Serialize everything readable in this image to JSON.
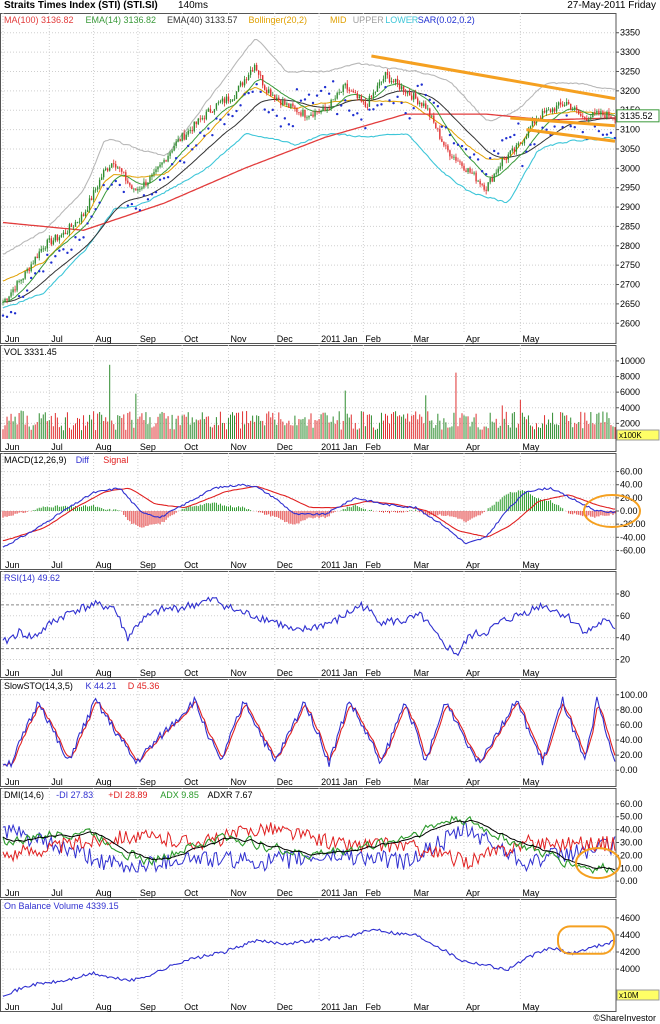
{
  "header": {
    "title": "Straits Times Index (STI) (STI.SI)",
    "timing": "140ms",
    "date": "27-May-2011 Friday"
  },
  "credit": "©ShareInvestor",
  "x_axis": {
    "months": [
      "Jun",
      "Jul",
      "Aug",
      "Sep",
      "Oct",
      "Nov",
      "Dec",
      "2011 Jan",
      "Feb",
      "Mar",
      "Apr",
      "May"
    ]
  },
  "colors": {
    "price_up": "#2e8b2e",
    "price_down": "#e03030",
    "ma100": "#e23c3c",
    "ema14": "#3a9a3a",
    "ema40": "#333333",
    "bollinger_mid": "#e0a000",
    "bollinger_upper": "#b8b8b8",
    "bollinger_lower": "#3ec6d8",
    "sar": "#1f2fd0",
    "annotation": "#f5a020",
    "blue": "#3030d0",
    "red": "#e02020",
    "green": "#2a9a2a"
  },
  "chart_data": [
    {
      "id": "price",
      "type": "candlestick",
      "legend": [
        {
          "label": "MA(100)",
          "value": "3136.82",
          "color": "#e23c3c"
        },
        {
          "label": "EMA(14)",
          "value": "3136.82",
          "color": "#3a9a3a"
        },
        {
          "label": "EMA(40)",
          "value": "3133.57",
          "color": "#333333"
        },
        {
          "label": "Bollinger(20,2)",
          "value": "",
          "color": "#e0a000"
        },
        {
          "label": "MID",
          "value": "",
          "color": "#e0a000"
        },
        {
          "label": "UPPER",
          "value": "",
          "color": "#a0a0a0"
        },
        {
          "label": "LOWER",
          "value": "",
          "color": "#3ec6d8"
        },
        {
          "label": "SAR(0.02,0.2)",
          "value": "",
          "color": "#1f2fd0"
        }
      ],
      "last_value": "3135.52",
      "y_ticks": [
        2600,
        2650,
        2700,
        2750,
        2800,
        2850,
        2900,
        2950,
        3000,
        3050,
        3100,
        3150,
        3200,
        3250,
        3300,
        3350
      ],
      "ylim": [
        2580,
        3370
      ],
      "close_anchors": [
        [
          0,
          2655
        ],
        [
          10,
          2720
        ],
        [
          20,
          2800
        ],
        [
          30,
          2830
        ],
        [
          40,
          2880
        ],
        [
          50,
          2990
        ],
        [
          55,
          3020
        ],
        [
          65,
          2940
        ],
        [
          75,
          2980
        ],
        [
          85,
          3060
        ],
        [
          95,
          3110
        ],
        [
          105,
          3160
        ],
        [
          115,
          3190
        ],
        [
          125,
          3270
        ],
        [
          130,
          3210
        ],
        [
          140,
          3165
        ],
        [
          150,
          3140
        ],
        [
          160,
          3150
        ],
        [
          170,
          3210
        ],
        [
          180,
          3160
        ],
        [
          190,
          3240
        ],
        [
          200,
          3200
        ],
        [
          210,
          3160
        ],
        [
          220,
          3050
        ],
        [
          230,
          3000
        ],
        [
          240,
          2950
        ],
        [
          248,
          3020
        ],
        [
          255,
          3050
        ],
        [
          265,
          3130
        ],
        [
          272,
          3150
        ],
        [
          280,
          3170
        ],
        [
          288,
          3130
        ],
        [
          296,
          3140
        ],
        [
          304,
          3135
        ]
      ],
      "ma100_anchors": [
        [
          0,
          2860
        ],
        [
          40,
          2840
        ],
        [
          80,
          2910
        ],
        [
          120,
          3000
        ],
        [
          160,
          3080
        ],
        [
          200,
          3140
        ],
        [
          240,
          3140
        ],
        [
          270,
          3125
        ],
        [
          304,
          3130
        ]
      ],
      "upper_anchors": [
        [
          0,
          2780
        ],
        [
          20,
          2840
        ],
        [
          40,
          2950
        ],
        [
          50,
          3080
        ],
        [
          60,
          3060
        ],
        [
          80,
          3030
        ],
        [
          100,
          3170
        ],
        [
          125,
          3340
        ],
        [
          140,
          3250
        ],
        [
          160,
          3250
        ],
        [
          175,
          3270
        ],
        [
          190,
          3260
        ],
        [
          205,
          3250
        ],
        [
          220,
          3230
        ],
        [
          240,
          3120
        ],
        [
          255,
          3150
        ],
        [
          268,
          3220
        ],
        [
          285,
          3220
        ],
        [
          304,
          3200
        ]
      ],
      "lower_anchors": [
        [
          0,
          2640
        ],
        [
          20,
          2680
        ],
        [
          40,
          2790
        ],
        [
          55,
          2900
        ],
        [
          65,
          2900
        ],
        [
          80,
          2940
        ],
        [
          100,
          3000
        ],
        [
          120,
          3090
        ],
        [
          130,
          3080
        ],
        [
          145,
          3060
        ],
        [
          160,
          3090
        ],
        [
          180,
          3080
        ],
        [
          200,
          3090
        ],
        [
          215,
          3000
        ],
        [
          230,
          2940
        ],
        [
          250,
          2910
        ],
        [
          265,
          3050
        ],
        [
          280,
          3070
        ],
        [
          304,
          3080
        ]
      ],
      "trendlines": [
        {
          "from": [
            183,
            3290
          ],
          "to": [
            304,
            3180
          ]
        },
        {
          "from": [
            252,
            3130
          ],
          "to": [
            304,
            3110
          ]
        },
        {
          "from": [
            260,
            3100
          ],
          "to": [
            304,
            3070
          ]
        }
      ]
    },
    {
      "id": "volume",
      "type": "bar",
      "legend": [
        {
          "label": "VOL",
          "value": "3331.45",
          "color": "#000"
        }
      ],
      "y_ticks": [
        2000,
        4000,
        6000,
        8000,
        10000
      ],
      "ylim": [
        0,
        10500
      ],
      "unit": "x100K",
      "base": 2800,
      "spikes": [
        [
          53,
          9500
        ],
        [
          66,
          5800
        ],
        [
          170,
          6200
        ],
        [
          210,
          5600
        ],
        [
          225,
          8500
        ],
        [
          248,
          4300
        ],
        [
          257,
          5000
        ]
      ]
    },
    {
      "id": "macd",
      "type": "line",
      "legend": [
        {
          "label": "MACD(12,26,9)",
          "value": "",
          "color": "#000"
        },
        {
          "label": "Diff",
          "value": "",
          "color": "#3030d0"
        },
        {
          "label": "Signal",
          "value": "",
          "color": "#e02020"
        }
      ],
      "y_ticks": [
        -60,
        -40,
        -20,
        0,
        20,
        40,
        60
      ],
      "tick_labels": [
        "-60.00",
        "-40.00",
        "-20.00",
        "0.00",
        "20.00",
        "40.00",
        "60.00"
      ],
      "ylim": [
        -70,
        70
      ],
      "diff_anchors": [
        [
          0,
          -55
        ],
        [
          15,
          -30
        ],
        [
          30,
          0
        ],
        [
          45,
          28
        ],
        [
          58,
          35
        ],
        [
          68,
          0
        ],
        [
          78,
          -10
        ],
        [
          90,
          10
        ],
        [
          105,
          35
        ],
        [
          118,
          40
        ],
        [
          125,
          38
        ],
        [
          135,
          20
        ],
        [
          145,
          -5
        ],
        [
          160,
          -5
        ],
        [
          175,
          20
        ],
        [
          190,
          10
        ],
        [
          205,
          5
        ],
        [
          218,
          -20
        ],
        [
          230,
          -50
        ],
        [
          240,
          -40
        ],
        [
          250,
          0
        ],
        [
          260,
          30
        ],
        [
          272,
          35
        ],
        [
          285,
          15
        ],
        [
          295,
          0
        ],
        [
          304,
          -2
        ]
      ],
      "signal_anchors": [
        [
          0,
          -45
        ],
        [
          20,
          -25
        ],
        [
          35,
          5
        ],
        [
          50,
          30
        ],
        [
          62,
          35
        ],
        [
          75,
          10
        ],
        [
          90,
          5
        ],
        [
          110,
          30
        ],
        [
          125,
          38
        ],
        [
          140,
          22
        ],
        [
          152,
          5
        ],
        [
          165,
          5
        ],
        [
          180,
          15
        ],
        [
          195,
          10
        ],
        [
          210,
          0
        ],
        [
          225,
          -30
        ],
        [
          240,
          -40
        ],
        [
          252,
          -20
        ],
        [
          265,
          15
        ],
        [
          280,
          25
        ],
        [
          295,
          8
        ],
        [
          304,
          2
        ]
      ]
    },
    {
      "id": "rsi",
      "type": "line",
      "legend": [
        {
          "label": "RSI(14)",
          "value": "49.62",
          "color": "#3030d0"
        }
      ],
      "y_ticks": [
        20,
        40,
        60,
        80
      ],
      "ylim": [
        15,
        90
      ],
      "anchors": [
        [
          0,
          35
        ],
        [
          8,
          45
        ],
        [
          15,
          40
        ],
        [
          25,
          55
        ],
        [
          35,
          65
        ],
        [
          45,
          70
        ],
        [
          55,
          68
        ],
        [
          62,
          40
        ],
        [
          68,
          55
        ],
        [
          78,
          65
        ],
        [
          90,
          68
        ],
        [
          105,
          75
        ],
        [
          115,
          65
        ],
        [
          125,
          60
        ],
        [
          135,
          55
        ],
        [
          145,
          45
        ],
        [
          155,
          50
        ],
        [
          165,
          55
        ],
        [
          178,
          70
        ],
        [
          188,
          55
        ],
        [
          198,
          55
        ],
        [
          208,
          60
        ],
        [
          218,
          35
        ],
        [
          226,
          25
        ],
        [
          232,
          42
        ],
        [
          240,
          45
        ],
        [
          248,
          55
        ],
        [
          258,
          62
        ],
        [
          268,
          70
        ],
        [
          280,
          60
        ],
        [
          290,
          45
        ],
        [
          298,
          55
        ],
        [
          304,
          50
        ]
      ]
    },
    {
      "id": "stochastic",
      "type": "line",
      "legend": [
        {
          "label": "SlowSTO(14,3,5)",
          "value": "",
          "color": "#000"
        },
        {
          "label": "K",
          "value": "44.21",
          "color": "#3030d0"
        },
        {
          "label": "D",
          "value": "45.36",
          "color": "#e02020"
        }
      ],
      "y_ticks": [
        0,
        20,
        40,
        60,
        80,
        100
      ],
      "tick_labels": [
        "0.00",
        "20.00",
        "40.00",
        "60.00",
        "80.00",
        "100.00"
      ],
      "ylim": [
        -5,
        105
      ],
      "peaks": [
        18,
        46,
        95,
        120,
        150,
        172,
        200,
        220,
        255,
        278,
        295
      ],
      "troughs": [
        4,
        32,
        66,
        108,
        135,
        162,
        188,
        210,
        236,
        268,
        289,
        304
      ]
    },
    {
      "id": "dmi",
      "type": "line",
      "legend": [
        {
          "label": "DMI(14,6)",
          "value": "",
          "color": "#000"
        },
        {
          "label": "-DI",
          "value": "27.83",
          "color": "#3030d0"
        },
        {
          "label": "+DI",
          "value": "28.89",
          "color": "#e02020"
        },
        {
          "label": "ADX",
          "value": "9.85",
          "color": "#2a9a2a"
        },
        {
          "label": "ADXR",
          "value": "7.67",
          "color": "#000"
        }
      ],
      "y_ticks": [
        0,
        10,
        20,
        30,
        40,
        50,
        60
      ],
      "tick_labels": [
        "0.00",
        "10.00",
        "20.00",
        "30.00",
        "40.00",
        "50.00",
        "60.00"
      ],
      "ylim": [
        -3,
        63
      ]
    },
    {
      "id": "obv",
      "type": "line",
      "legend": [
        {
          "label": "On Balance Volume",
          "value": "4339.15",
          "color": "#3030d0"
        }
      ],
      "y_ticks": [
        4000,
        4200,
        4400,
        4600
      ],
      "ylim": [
        3650,
        4680
      ],
      "unit": "x10M",
      "anchors": [
        [
          0,
          3700
        ],
        [
          15,
          3820
        ],
        [
          30,
          3860
        ],
        [
          45,
          3950
        ],
        [
          55,
          3890
        ],
        [
          65,
          3870
        ],
        [
          75,
          3950
        ],
        [
          90,
          4100
        ],
        [
          110,
          4200
        ],
        [
          125,
          4330
        ],
        [
          140,
          4300
        ],
        [
          160,
          4350
        ],
        [
          175,
          4400
        ],
        [
          185,
          4470
        ],
        [
          195,
          4420
        ],
        [
          205,
          4400
        ],
        [
          215,
          4280
        ],
        [
          228,
          4100
        ],
        [
          240,
          4050
        ],
        [
          250,
          3990
        ],
        [
          262,
          4150
        ],
        [
          272,
          4250
        ],
        [
          282,
          4180
        ],
        [
          292,
          4250
        ],
        [
          304,
          4330
        ]
      ]
    }
  ]
}
